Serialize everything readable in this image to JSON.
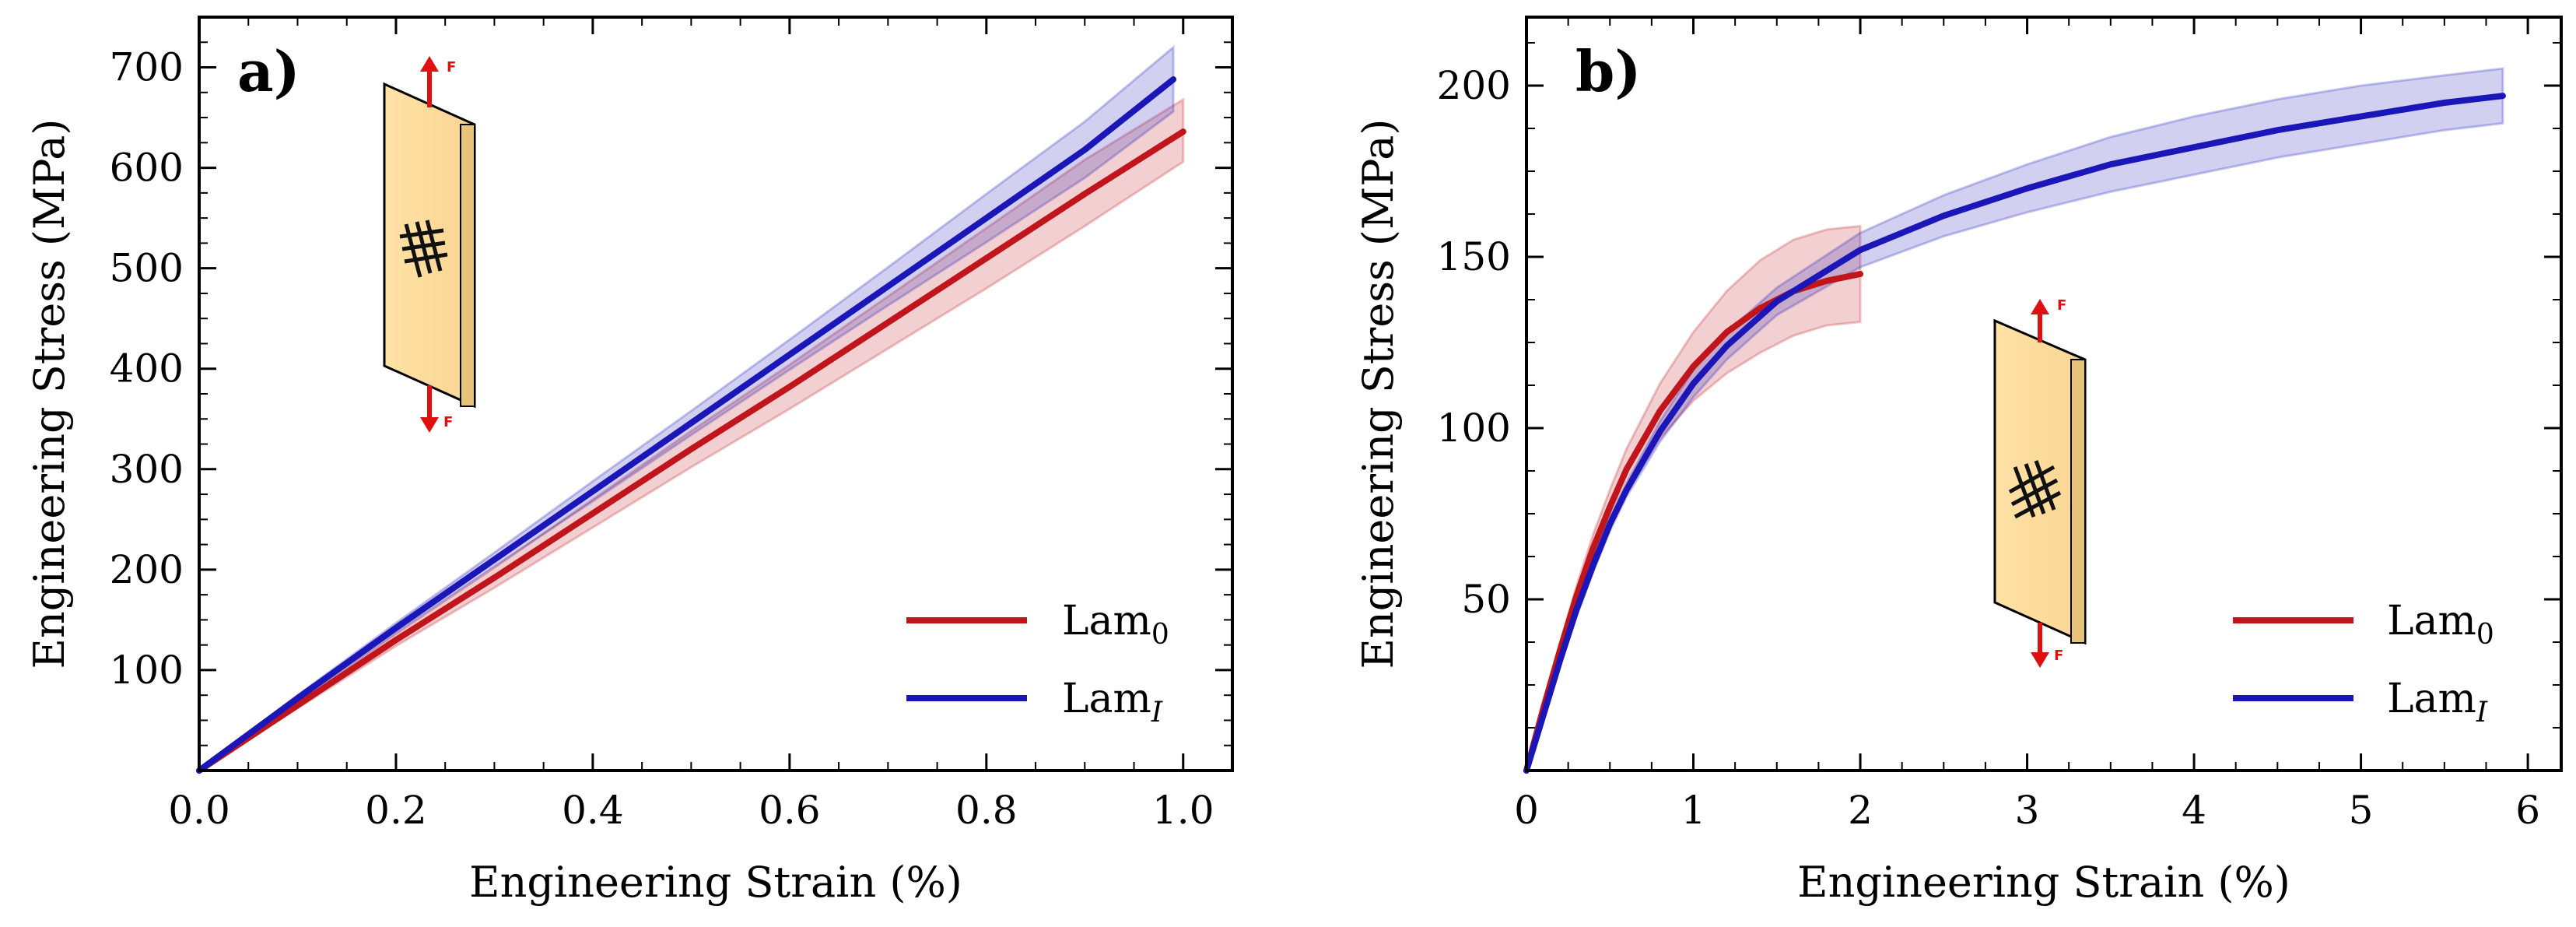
{
  "chart_data": [
    {
      "type": "line",
      "panel_label": "a)",
      "xlabel": "Engineering Strain (%)",
      "ylabel": "Engineering Stress (MPa)",
      "xlim": [
        0,
        1.05
      ],
      "ylim": [
        0,
        750
      ],
      "xticks": [
        0.0,
        0.2,
        0.4,
        0.6,
        0.8,
        1.0
      ],
      "xtick_labels": [
        "0.0",
        "0.2",
        "0.4",
        "0.6",
        "0.8",
        "1.0"
      ],
      "yticks": [
        100,
        200,
        300,
        400,
        500,
        600,
        700
      ],
      "ytick_labels": [
        "100",
        "200",
        "300",
        "400",
        "500",
        "600",
        "700"
      ],
      "legend_position": "bottom-right",
      "inset": "tensile specimen with force arrows (F)",
      "series": [
        {
          "name": "Lam0",
          "label_base": "Lam",
          "label_sub": "0",
          "color": "#c0151b",
          "x": [
            0,
            0.1,
            0.2,
            0.3,
            0.4,
            0.5,
            0.6,
            0.7,
            0.8,
            0.9,
            1.0
          ],
          "y": [
            0,
            65,
            130,
            192,
            256,
            320,
            382,
            446,
            510,
            574,
            636
          ],
          "y_lower": [
            0,
            62,
            124,
            182,
            242,
            302,
            360,
            420,
            480,
            542,
            606
          ],
          "y_upper": [
            0,
            68,
            136,
            202,
            270,
            338,
            404,
            472,
            540,
            608,
            668
          ]
        },
        {
          "name": "LamI",
          "label_base": "Lam",
          "label_sub": "I",
          "color": "#1a16b8",
          "x": [
            0,
            0.1,
            0.2,
            0.3,
            0.4,
            0.5,
            0.6,
            0.7,
            0.8,
            0.9,
            0.99
          ],
          "y": [
            0,
            72,
            142,
            210,
            278,
            346,
            414,
            482,
            550,
            618,
            688
          ],
          "y_lower": [
            0,
            69,
            137,
            203,
            268,
            334,
            399,
            463,
            526,
            590,
            656
          ],
          "y_upper": [
            0,
            75,
            147,
            217,
            288,
            358,
            429,
            501,
            574,
            646,
            720
          ]
        }
      ]
    },
    {
      "type": "line",
      "panel_label": "b)",
      "xlabel": "Engineering Strain (%)",
      "ylabel": "Engineering Stress (MPa)",
      "xlim": [
        0,
        6.2
      ],
      "ylim": [
        0,
        220
      ],
      "xticks": [
        0,
        1,
        2,
        3,
        4,
        5,
        6
      ],
      "xtick_labels": [
        "0",
        "1",
        "2",
        "3",
        "4",
        "5",
        "6"
      ],
      "yticks": [
        50,
        100,
        150,
        200
      ],
      "ytick_labels": [
        "50",
        "100",
        "150",
        "200"
      ],
      "legend_position": "bottom-right",
      "inset": "tensile specimen with force arrows (F)",
      "series": [
        {
          "name": "Lam0",
          "label_base": "Lam",
          "label_sub": "0",
          "color": "#c0151b",
          "x": [
            0,
            0.1,
            0.2,
            0.3,
            0.4,
            0.5,
            0.6,
            0.8,
            1.0,
            1.2,
            1.4,
            1.6,
            1.8,
            2.0
          ],
          "y": [
            0,
            18,
            35,
            51,
            65,
            77,
            88,
            105,
            118,
            128,
            135,
            140,
            143,
            145
          ],
          "y_lower": [
            0,
            17,
            33,
            48,
            61,
            72,
            82,
            97,
            108,
            116,
            122,
            127,
            130,
            131
          ],
          "y_upper": [
            0,
            19,
            37,
            54,
            69,
            82,
            94,
            113,
            128,
            140,
            149,
            155,
            158,
            159
          ]
        },
        {
          "name": "LamI",
          "label_base": "Lam",
          "label_sub": "I",
          "color": "#1a16b8",
          "x": [
            0,
            0.1,
            0.2,
            0.3,
            0.4,
            0.5,
            0.6,
            0.8,
            1.0,
            1.2,
            1.5,
            2.0,
            2.5,
            3.0,
            3.5,
            4.0,
            4.5,
            5.0,
            5.5,
            5.85
          ],
          "y": [
            0,
            16,
            32,
            47,
            60,
            72,
            82,
            99,
            113,
            124,
            137,
            152,
            162,
            170,
            177,
            182,
            187,
            191,
            195,
            197
          ],
          "y_lower": [
            0,
            16,
            31,
            45,
            58,
            70,
            80,
            96,
            109,
            120,
            133,
            147,
            156,
            163,
            169,
            174,
            179,
            183,
            187,
            189
          ],
          "y_upper": [
            0,
            17,
            33,
            49,
            62,
            74,
            84,
            102,
            117,
            128,
            141,
            157,
            168,
            177,
            185,
            191,
            196,
            200,
            203,
            205
          ]
        }
      ]
    }
  ]
}
